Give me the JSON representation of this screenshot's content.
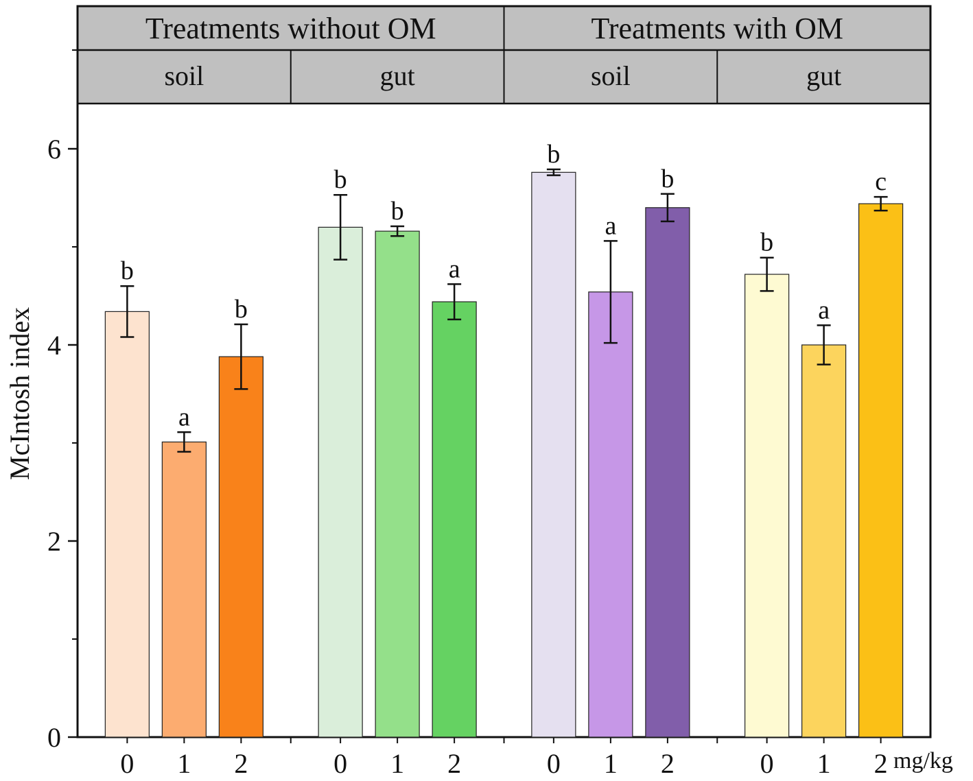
{
  "chart_data": {
    "type": "bar",
    "title": "",
    "ylabel": "McIntosh index",
    "xlabel": "",
    "x_unit": "mg/kg",
    "ylim": [
      0,
      6.6
    ],
    "yticks": [
      0,
      2,
      4,
      6
    ],
    "ytick_labels": [
      "0",
      "2",
      "4",
      "6"
    ],
    "header": {
      "groups": [
        {
          "label": "Treatments without OM",
          "subgroups": [
            "soil",
            "gut"
          ]
        },
        {
          "label": "Treatments with OM",
          "subgroups": [
            "soil",
            "gut"
          ]
        }
      ]
    },
    "panels": [
      {
        "group": "Treatments without OM",
        "subgroup": "soil",
        "categories": [
          "0",
          "1",
          "2"
        ],
        "values": [
          4.34,
          3.01,
          3.88
        ],
        "errors": [
          0.26,
          0.1,
          0.33
        ],
        "letters": [
          "b",
          "a",
          "b"
        ],
        "colors": [
          "#fde3cf",
          "#fcac70",
          "#f9821a"
        ]
      },
      {
        "group": "Treatments without OM",
        "subgroup": "gut",
        "categories": [
          "0",
          "1",
          "2"
        ],
        "values": [
          5.2,
          5.16,
          4.44
        ],
        "errors": [
          0.33,
          0.05,
          0.18
        ],
        "letters": [
          "b",
          "b",
          "a"
        ],
        "colors": [
          "#daeeda",
          "#94e08a",
          "#65d262"
        ]
      },
      {
        "group": "Treatments with OM",
        "subgroup": "soil",
        "categories": [
          "0",
          "1",
          "2"
        ],
        "values": [
          5.76,
          4.54,
          5.4
        ],
        "errors": [
          0.03,
          0.52,
          0.14
        ],
        "letters": [
          "b",
          "a",
          "b"
        ],
        "colors": [
          "#e5e0f0",
          "#c697e7",
          "#815eaa"
        ]
      },
      {
        "group": "Treatments with OM",
        "subgroup": "gut",
        "categories": [
          "0",
          "1",
          "2"
        ],
        "values": [
          4.72,
          4.0,
          5.44
        ],
        "errors": [
          0.17,
          0.2,
          0.07
        ],
        "letters": [
          "b",
          "a",
          "c"
        ],
        "colors": [
          "#fefad2",
          "#fcd45d",
          "#fbc016"
        ]
      }
    ]
  }
}
